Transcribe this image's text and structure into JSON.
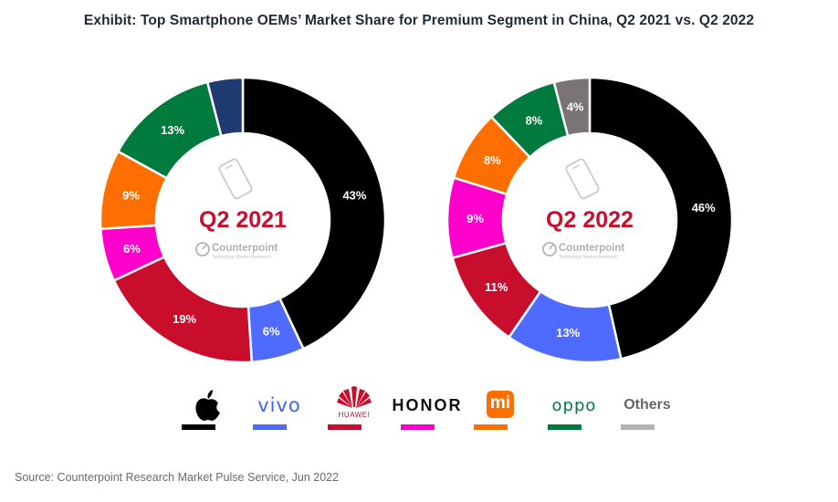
{
  "title": "Exhibit: Top Smartphone OEMs’ Market Share for Premium Segment in China, Q2 2021 vs. Q2 2022",
  "source": "Source: Counterpoint Research Market Pulse Service, Jun 2022",
  "watermark": {
    "brand": "Counterpoint",
    "tagline": "Technology Market Research"
  },
  "legend": [
    {
      "key": "apple",
      "label": "Apple",
      "color": "#000000",
      "icon": "apple-logo-icon"
    },
    {
      "key": "vivo",
      "label": "vivo",
      "color": "#4f6bff",
      "icon": "vivo-logo"
    },
    {
      "key": "huawei",
      "label": "HUAWEI",
      "color": "#c90e2d",
      "icon": "huawei-logo-icon"
    },
    {
      "key": "honor",
      "label": "HONOR",
      "color": "#ff00cc",
      "icon": "honor-logo"
    },
    {
      "key": "xiaomi",
      "label": "mi",
      "color": "#ff6e00",
      "icon": "xiaomi-logo-icon"
    },
    {
      "key": "oppo",
      "label": "oppo",
      "color": "#007a3d",
      "icon": "oppo-logo"
    },
    {
      "key": "others",
      "label": "Others",
      "color": "#b4b4b4",
      "icon": "others-label"
    }
  ],
  "chart_data": [
    {
      "type": "pie",
      "variant": "donut",
      "title": "Q2 2021",
      "categories": [
        "Apple",
        "vivo",
        "Huawei",
        "Honor",
        "Xiaomi",
        "OPPO",
        "Others"
      ],
      "values": [
        43,
        6,
        19,
        6,
        9,
        13,
        4
      ],
      "labels": [
        "43%",
        "6%",
        "19%",
        "6%",
        "9%",
        "13%",
        ""
      ],
      "colors": [
        "#000000",
        "#4f6bff",
        "#c90e2d",
        "#ff00cc",
        "#ff6e00",
        "#007a3d",
        "#1e3a6e"
      ]
    },
    {
      "type": "pie",
      "variant": "donut",
      "title": "Q2 2022",
      "categories": [
        "Apple",
        "vivo",
        "Huawei",
        "Honor",
        "Xiaomi",
        "OPPO",
        "Others"
      ],
      "values": [
        46,
        13,
        11,
        9,
        8,
        8,
        4
      ],
      "labels": [
        "46%",
        "13%",
        "11%",
        "9%",
        "8%",
        "8%",
        "4%"
      ],
      "colors": [
        "#000000",
        "#4f6bff",
        "#c90e2d",
        "#ff00cc",
        "#ff6e00",
        "#007a3d",
        "#7a7474"
      ]
    }
  ]
}
